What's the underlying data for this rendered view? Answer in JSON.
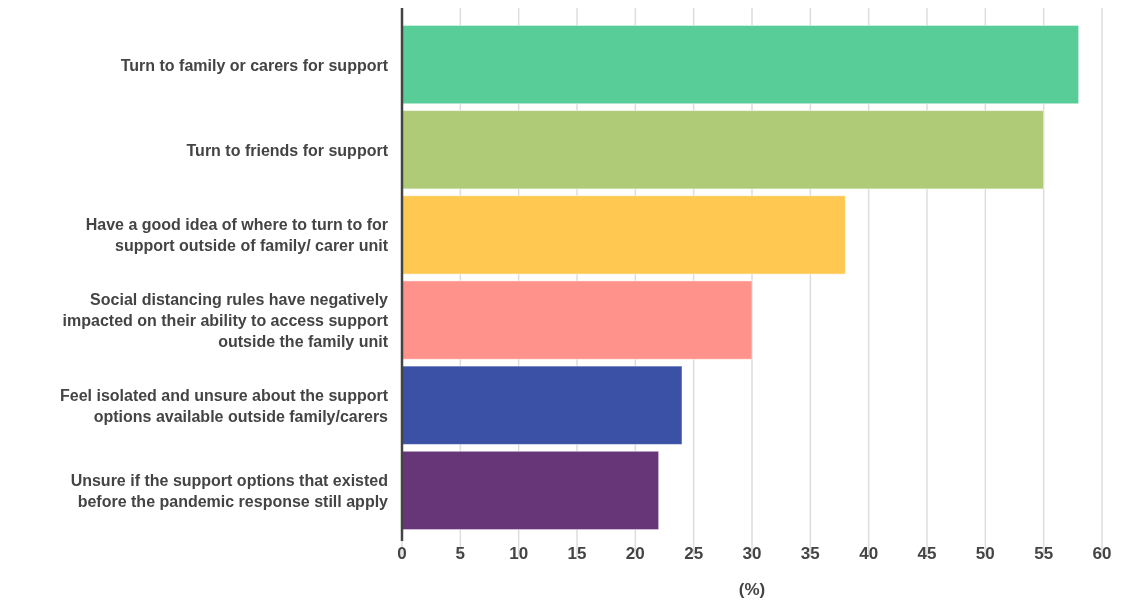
{
  "chart_data": {
    "type": "bar",
    "orientation": "horizontal",
    "xlabel": "(%)",
    "categories": [
      "Turn to family or carers for support",
      "Turn to friends for support",
      "Have a good idea of where to turn to for support outside of family/ carer unit",
      "Social distancing rules have negatively impacted on their ability to access support outside the family unit",
      "Feel isolated and unsure about the support options available outside family/carers",
      "Unsure if the support options that existed before the pandemic response still apply"
    ],
    "values": [
      58,
      55,
      38,
      30,
      24,
      22
    ],
    "colors": [
      "#59cd98",
      "#afcb78",
      "#ffc851",
      "#ff928a",
      "#3a51a5",
      "#673679"
    ],
    "xlim": [
      0,
      60
    ],
    "xticks": [
      0,
      5,
      10,
      15,
      20,
      25,
      30,
      35,
      40,
      45,
      50,
      55,
      60
    ],
    "grid": "x"
  }
}
